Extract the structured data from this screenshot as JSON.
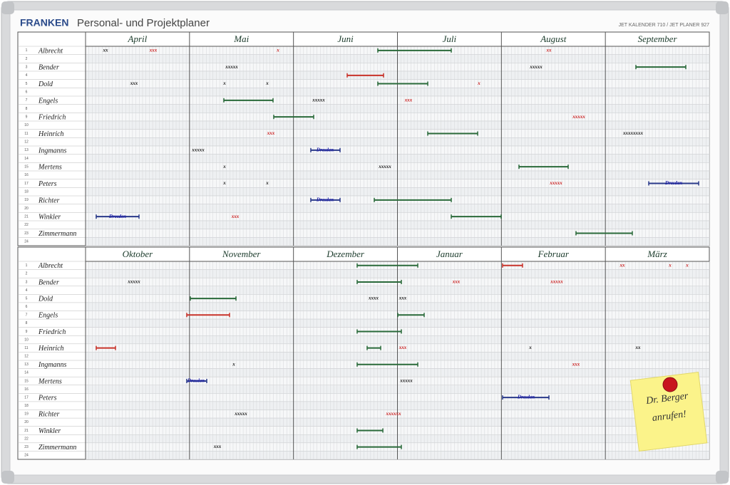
{
  "header": {
    "brand": "FRANKEN",
    "title": "Personal- und Projektplaner",
    "model": "JET KALENDER 710 / JET PLANER 927"
  },
  "row_numbers": [
    1,
    2,
    3,
    4,
    5,
    6,
    7,
    8,
    9,
    10,
    11,
    12,
    13,
    14,
    15,
    16,
    17,
    18,
    19,
    20,
    21,
    22,
    23,
    24
  ],
  "halves": [
    {
      "months": [
        "April",
        "Mai",
        "Juni",
        "Juli",
        "August",
        "September"
      ],
      "names": [
        "Albrecht",
        "Bender",
        "Dold",
        "Engels",
        "Friedrich",
        "Heinrich",
        "Ingmanns",
        "Mertens",
        "Peters",
        "Richter",
        "Winkler",
        "Zimmermann"
      ],
      "marks": [
        "xx",
        "xxx",
        "x",
        "xx",
        "xxxxx",
        "xxxxx",
        "xxx",
        "x",
        "x",
        "x",
        "xxxxx",
        "xxx",
        "xxxxx",
        "xxx",
        "xxxxxxxx",
        "xxxxx",
        "Dresden",
        "x",
        "xxxxx",
        "x",
        "x",
        "xxxxx",
        "Dresden",
        "Dresden",
        "Dresden",
        "xxx"
      ]
    },
    {
      "months": [
        "Oktober",
        "November",
        "Dezember",
        "Januar",
        "Februar",
        "März"
      ],
      "names": [
        "Albrecht",
        "Bender",
        "Dold",
        "Engels",
        "Friedrich",
        "Heinrich",
        "Ingmanns",
        "Mertens",
        "Peters",
        "Richter",
        "Winkler",
        "Zimmermann"
      ],
      "marks": [
        "xx",
        "x",
        "x",
        "xxxxx",
        "xxx",
        "xxxxx",
        "xxxx",
        "xxx",
        "xxx",
        "x",
        "xx",
        "x",
        "xxx",
        "Dresden",
        "xxxxx",
        "Dresden",
        "xxxxx",
        "xxxxxx",
        "xxx"
      ]
    }
  ],
  "note": {
    "lines": [
      "Dr. Berger",
      "anrufen!"
    ]
  }
}
